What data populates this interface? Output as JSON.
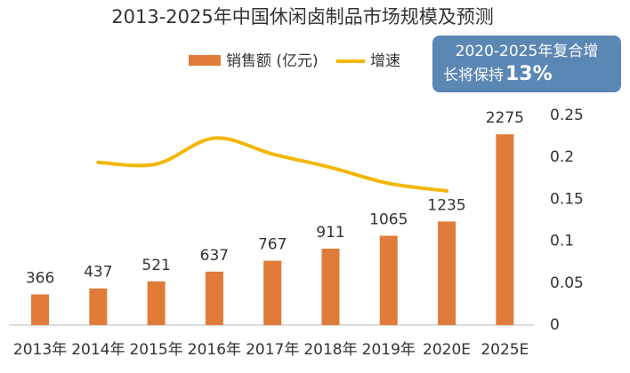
{
  "chart_data": {
    "type": "bar_line",
    "title": "2013-2025年中国休闲卤制品市场规模及预测",
    "categories": [
      "2013年",
      "2014年",
      "2015年",
      "2016年",
      "2017年",
      "2018年",
      "2019年",
      "2020E",
      "2025E"
    ],
    "series": [
      {
        "name": "销售额 (亿元)",
        "type": "bar",
        "color": "#e07b39",
        "values": [
          366,
          437,
          521,
          637,
          767,
          911,
          1065,
          1235,
          2275
        ]
      },
      {
        "name": "增速",
        "type": "line",
        "axis": "y2",
        "color": "#f2b705",
        "values": [
          null,
          0.194,
          0.192,
          0.223,
          0.204,
          0.188,
          0.169,
          0.16,
          null
        ]
      }
    ],
    "ylim": [
      0,
      2500
    ],
    "y2lim": [
      0,
      0.25
    ],
    "y2ticks": [
      0,
      0.05,
      0.1,
      0.15,
      0.2,
      0.25
    ],
    "legend": "top",
    "annotation": {
      "line1": "2020-2025年复合增",
      "line2": "长将保持",
      "highlight": "13%"
    }
  }
}
